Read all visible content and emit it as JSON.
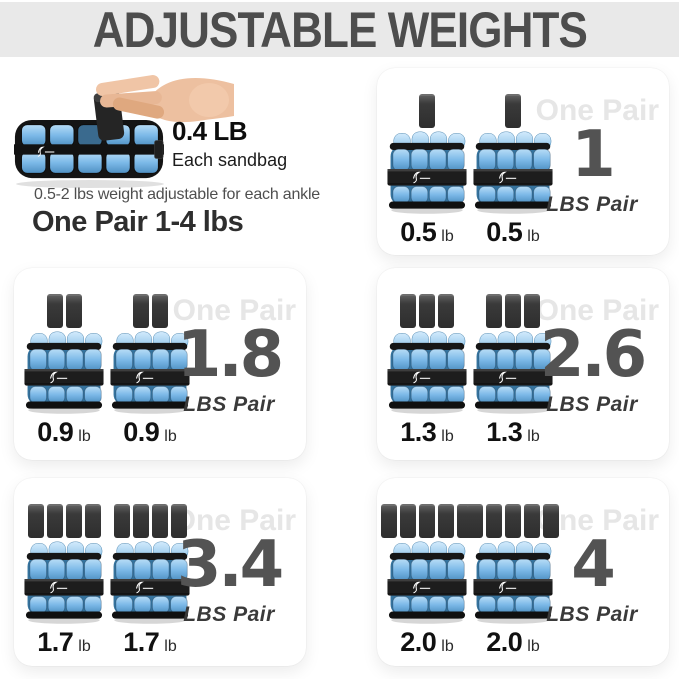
{
  "page": {
    "title": "ADJUSTABLE WEIGHTS"
  },
  "intro": {
    "sandbag_weight": "0.4 LB",
    "sandbag_caption": "Each sandbag",
    "adjust_note": "0.5-2 lbs weight adjustable for each ankle",
    "pair_range": "One Pair 1-4 lbs"
  },
  "cards": [
    {
      "watermark": "One Pair",
      "big_number": "1",
      "unit_label": "LBS Pair",
      "sandbags_per_weight": 1,
      "weights": [
        {
          "value": "0.5",
          "unit": "lb"
        },
        {
          "value": "0.5",
          "unit": "lb"
        }
      ]
    },
    {
      "watermark": "One Pair",
      "big_number": "1.8",
      "unit_label": "LBS Pair",
      "sandbags_per_weight": 2,
      "weights": [
        {
          "value": "0.9",
          "unit": "lb"
        },
        {
          "value": "0.9",
          "unit": "lb"
        }
      ]
    },
    {
      "watermark": "One Pair",
      "big_number": "2.6",
      "unit_label": "LBS Pair",
      "sandbags_per_weight": 3,
      "weights": [
        {
          "value": "1.3",
          "unit": "lb"
        },
        {
          "value": "1.3",
          "unit": "lb"
        }
      ]
    },
    {
      "watermark": "One Pair",
      "big_number": "3.4",
      "unit_label": "LBS Pair",
      "sandbags_per_weight": 4,
      "weights": [
        {
          "value": "1.7",
          "unit": "lb"
        },
        {
          "value": "1.7",
          "unit": "lb"
        }
      ]
    },
    {
      "watermark": "One Pair",
      "big_number": "4",
      "unit_label": "LBS Pair",
      "sandbags_per_weight": 5,
      "weights": [
        {
          "value": "2.0",
          "unit": "lb"
        },
        {
          "value": "2.0",
          "unit": "lb"
        }
      ]
    }
  ],
  "icons": {
    "sandbag": "dark rounded rectangle pouch",
    "ankle_weight": "blue pocketed cuff with black strap",
    "hand": "hand inserting sandbag",
    "brand_logo": "white script squiggle on strap"
  },
  "colors": {
    "header_band": "#e9e9e9",
    "headline_text": "#4d4d4d",
    "big_number": "#535353",
    "watermark": "#e6e6e6",
    "weight_blue_light": "#aed7f3",
    "weight_blue": "#6fb1e3",
    "weight_blue_dark": "#4d8fc4",
    "strap_black": "#1d1d1d"
  }
}
